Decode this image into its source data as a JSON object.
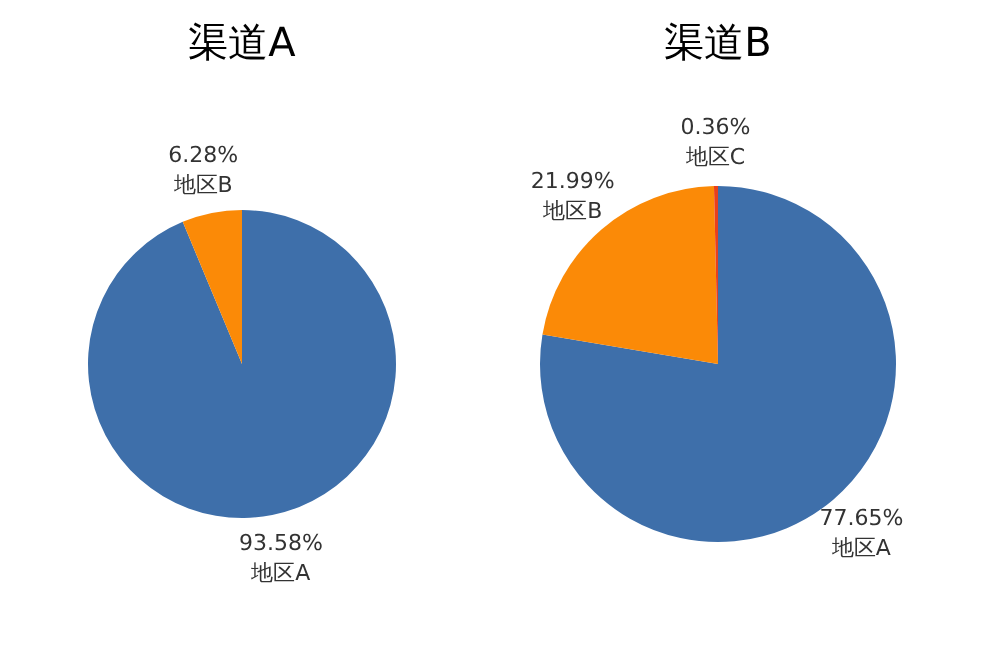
{
  "chart_data": [
    {
      "type": "pie",
      "title": "渠道A",
      "categories": [
        "地区A",
        "地区B"
      ],
      "values": [
        93.58,
        6.28
      ],
      "value_labels": [
        "93.58%",
        "6.28%"
      ],
      "colors": [
        "#3e6faa",
        "#fb8a07"
      ],
      "legend": false
    },
    {
      "type": "pie",
      "title": "渠道B",
      "categories": [
        "地区A",
        "地区B",
        "地区C"
      ],
      "values": [
        77.65,
        21.99,
        0.36
      ],
      "value_labels": [
        "77.65%",
        "21.99%",
        "0.36%"
      ],
      "colors": [
        "#3e6faa",
        "#fb8a07",
        "#e8401c"
      ],
      "legend": false
    }
  ]
}
